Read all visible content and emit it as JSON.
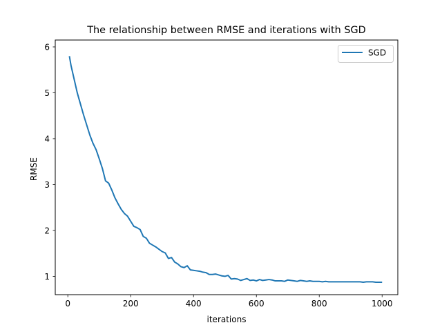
{
  "chart_data": {
    "type": "line",
    "title": "The relationship between RMSE and iterations with SGD",
    "xlabel": "iterations",
    "ylabel": "RMSE",
    "xlim": [
      -40,
      1050
    ],
    "ylim": [
      0.6,
      6.15
    ],
    "xticks": [
      0,
      200,
      400,
      600,
      800,
      1000
    ],
    "yticks": [
      1,
      2,
      3,
      4,
      5,
      6
    ],
    "grid": false,
    "legend": "top-right",
    "series": [
      {
        "name": "SGD",
        "color": "#1f77b4",
        "x": [
          5,
          10,
          20,
          30,
          40,
          50,
          60,
          70,
          80,
          90,
          100,
          110,
          120,
          130,
          140,
          150,
          160,
          170,
          180,
          190,
          200,
          210,
          220,
          230,
          240,
          250,
          260,
          270,
          280,
          290,
          300,
          310,
          320,
          330,
          340,
          350,
          360,
          370,
          380,
          390,
          400,
          410,
          420,
          430,
          440,
          450,
          460,
          470,
          480,
          490,
          500,
          510,
          520,
          530,
          540,
          550,
          560,
          570,
          580,
          590,
          600,
          610,
          620,
          630,
          640,
          650,
          660,
          670,
          680,
          690,
          700,
          710,
          720,
          730,
          740,
          750,
          760,
          770,
          780,
          790,
          800,
          810,
          820,
          830,
          840,
          850,
          860,
          870,
          880,
          890,
          900,
          910,
          920,
          930,
          940,
          950,
          960,
          970,
          980,
          990,
          1000
        ],
        "y": [
          5.8,
          5.6,
          5.3,
          5.0,
          4.76,
          4.52,
          4.3,
          4.08,
          3.9,
          3.76,
          3.56,
          3.35,
          3.08,
          3.03,
          2.88,
          2.71,
          2.58,
          2.46,
          2.37,
          2.31,
          2.2,
          2.09,
          2.06,
          2.02,
          1.87,
          1.83,
          1.72,
          1.68,
          1.64,
          1.59,
          1.54,
          1.51,
          1.39,
          1.41,
          1.31,
          1.27,
          1.21,
          1.19,
          1.23,
          1.14,
          1.13,
          1.12,
          1.11,
          1.09,
          1.08,
          1.04,
          1.04,
          1.05,
          1.03,
          1.01,
          1.0,
          1.02,
          0.94,
          0.95,
          0.94,
          0.91,
          0.93,
          0.95,
          0.91,
          0.92,
          0.9,
          0.93,
          0.91,
          0.92,
          0.93,
          0.92,
          0.9,
          0.9,
          0.9,
          0.89,
          0.92,
          0.91,
          0.9,
          0.89,
          0.91,
          0.9,
          0.89,
          0.9,
          0.89,
          0.89,
          0.89,
          0.88,
          0.89,
          0.88,
          0.88,
          0.88,
          0.88,
          0.88,
          0.88,
          0.88,
          0.88,
          0.88,
          0.88,
          0.88,
          0.87,
          0.88,
          0.88,
          0.88,
          0.87,
          0.87,
          0.87
        ]
      }
    ]
  }
}
